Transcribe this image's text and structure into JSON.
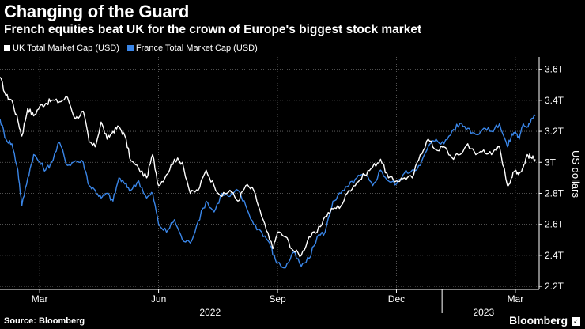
{
  "header": {
    "title": "Changing of the Guard",
    "subtitle": "French equities beat UK for the crown of Europe's biggest stock market"
  },
  "footer": {
    "source": "Source: Bloomberg",
    "brand": "Bloomberg",
    "brand_mark": "✓"
  },
  "colors": {
    "background": "#000000",
    "uk": "#ffffff",
    "france": "#3a86e8",
    "grid": "#6a6a6a"
  },
  "chart_data": {
    "type": "line",
    "title": "Changing of the Guard",
    "subtitle": "French equities beat UK for the crown of Europe's biggest stock market",
    "ylabel": "US dollars",
    "xlabel": "",
    "ylim": [
      2.18,
      3.68
    ],
    "yticks": [
      2.2,
      2.4,
      2.6,
      2.8,
      3.0,
      3.2,
      3.4,
      3.6
    ],
    "ytick_labels": [
      "2.2T",
      "2.4T",
      "2.6T",
      "2.8T",
      "3T",
      "3.2T",
      "3.4T",
      "3.6T"
    ],
    "xlim": [
      0,
      13.6
    ],
    "xticks": [
      {
        "x": 1,
        "label": "Mar"
      },
      {
        "x": 4,
        "label": "Jun"
      },
      {
        "x": 7,
        "label": "Sep"
      },
      {
        "x": 10,
        "label": "Dec"
      },
      {
        "x": 13,
        "label": "Mar"
      }
    ],
    "year_labels": [
      {
        "x": 5.3,
        "label": "2022"
      },
      {
        "x": 12.2,
        "label": "2023"
      }
    ],
    "grid": true,
    "legend_position": "top-left",
    "series": [
      {
        "name": "UK Total Market Cap (USD)",
        "color": "#ffffff",
        "x": [
          0,
          0.15,
          0.3,
          0.45,
          0.55,
          0.7,
          0.85,
          1.0,
          1.15,
          1.3,
          1.5,
          1.7,
          1.9,
          2.1,
          2.25,
          2.4,
          2.55,
          2.7,
          2.85,
          3.0,
          3.15,
          3.3,
          3.5,
          3.7,
          3.85,
          4.0,
          4.2,
          4.4,
          4.6,
          4.8,
          5.0,
          5.2,
          5.4,
          5.6,
          5.8,
          6.0,
          6.2,
          6.4,
          6.6,
          6.8,
          6.9,
          7.0,
          7.2,
          7.4,
          7.6,
          7.8,
          8.0,
          8.2,
          8.4,
          8.6,
          8.8,
          9.0,
          9.2,
          9.4,
          9.6,
          9.8,
          10.0,
          10.2,
          10.4,
          10.6,
          10.8,
          11.0,
          11.2,
          11.4,
          11.6,
          11.8,
          12.0,
          12.2,
          12.4,
          12.6,
          12.8,
          12.9,
          13.0,
          13.1,
          13.2,
          13.3,
          13.4,
          13.5
        ],
        "values": [
          3.55,
          3.43,
          3.4,
          3.27,
          3.17,
          3.35,
          3.3,
          3.36,
          3.38,
          3.4,
          3.39,
          3.42,
          3.28,
          3.33,
          3.13,
          3.1,
          3.26,
          3.15,
          3.2,
          3.23,
          3.17,
          3.01,
          2.96,
          2.9,
          3.05,
          2.85,
          2.92,
          3.02,
          3.0,
          2.8,
          2.82,
          2.95,
          2.85,
          2.78,
          2.82,
          2.75,
          2.85,
          2.82,
          2.65,
          2.5,
          2.45,
          2.55,
          2.52,
          2.43,
          2.4,
          2.52,
          2.55,
          2.65,
          2.7,
          2.72,
          2.82,
          2.87,
          2.92,
          2.97,
          3.02,
          2.9,
          2.88,
          2.9,
          2.9,
          3.05,
          3.15,
          3.08,
          3.1,
          3.03,
          3.05,
          3.12,
          3.05,
          3.08,
          3.05,
          3.1,
          2.85,
          2.9,
          2.95,
          2.93,
          2.97,
          3.05,
          3.03,
          3.02
        ]
      },
      {
        "name": "France Total Market Cap (USD)",
        "color": "#3a86e8",
        "x": [
          0,
          0.15,
          0.3,
          0.45,
          0.55,
          0.7,
          0.85,
          1.0,
          1.15,
          1.3,
          1.5,
          1.7,
          1.9,
          2.1,
          2.25,
          2.4,
          2.55,
          2.7,
          2.85,
          3.0,
          3.15,
          3.3,
          3.5,
          3.7,
          3.85,
          4.0,
          4.2,
          4.4,
          4.6,
          4.8,
          5.0,
          5.2,
          5.4,
          5.6,
          5.8,
          6.0,
          6.2,
          6.4,
          6.6,
          6.8,
          6.9,
          7.0,
          7.2,
          7.4,
          7.6,
          7.8,
          8.0,
          8.2,
          8.4,
          8.6,
          8.8,
          9.0,
          9.2,
          9.4,
          9.6,
          9.8,
          10.0,
          10.2,
          10.4,
          10.6,
          10.8,
          11.0,
          11.2,
          11.4,
          11.6,
          11.8,
          12.0,
          12.2,
          12.4,
          12.6,
          12.8,
          12.9,
          13.0,
          13.1,
          13.2,
          13.3,
          13.4,
          13.5
        ],
        "values": [
          3.28,
          3.15,
          3.12,
          2.95,
          2.72,
          2.9,
          3.05,
          3.0,
          2.95,
          3.0,
          3.13,
          2.98,
          3.01,
          3.0,
          2.85,
          2.82,
          2.77,
          2.8,
          2.75,
          2.9,
          2.86,
          2.82,
          2.88,
          2.77,
          2.8,
          2.6,
          2.55,
          2.63,
          2.5,
          2.48,
          2.62,
          2.75,
          2.68,
          2.8,
          2.78,
          2.82,
          2.72,
          2.6,
          2.55,
          2.48,
          2.4,
          2.35,
          2.32,
          2.42,
          2.33,
          2.38,
          2.52,
          2.55,
          2.75,
          2.8,
          2.85,
          2.9,
          2.92,
          2.85,
          2.95,
          2.88,
          2.86,
          2.93,
          2.95,
          2.98,
          3.1,
          3.15,
          3.12,
          3.2,
          3.25,
          3.22,
          3.18,
          3.22,
          3.2,
          3.25,
          3.1,
          3.17,
          3.2,
          3.15,
          3.25,
          3.23,
          3.28,
          3.3
        ]
      }
    ]
  }
}
